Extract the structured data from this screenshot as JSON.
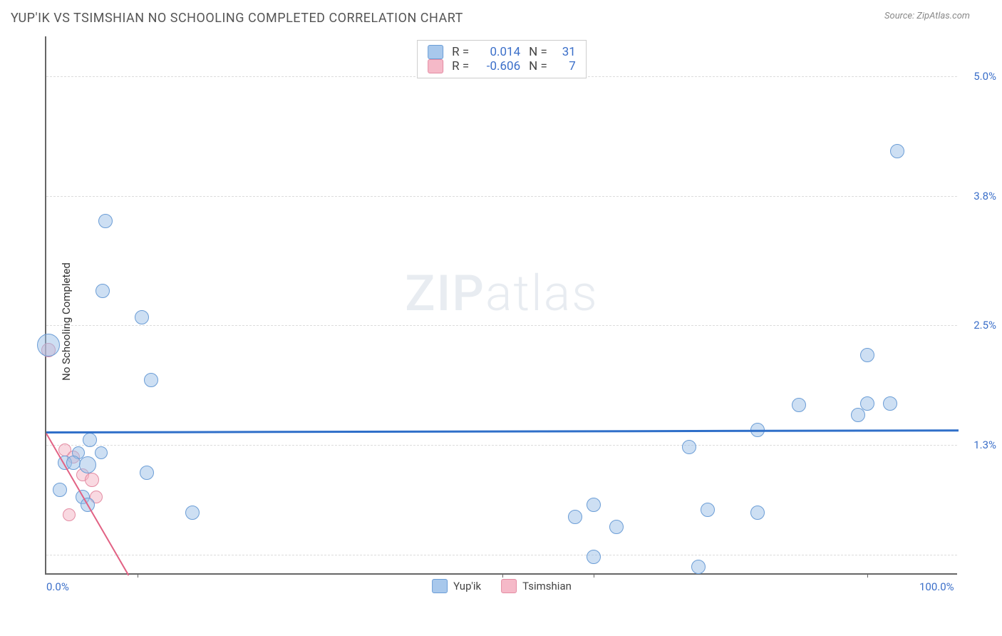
{
  "header": {
    "title": "YUP'IK VS TSIMSHIAN NO SCHOOLING COMPLETED CORRELATION CHART",
    "source": "Source: ZipAtlas.com"
  },
  "chart": {
    "type": "scatter",
    "ylabel": "No Schooling Completed",
    "xlim": [
      0,
      100
    ],
    "ylim": [
      0,
      5.4
    ],
    "xtick_labels": [
      "0.0%",
      "100.0%"
    ],
    "xtick_positions": [
      0,
      100
    ],
    "xtick_minor_positions": [
      10,
      50,
      60,
      90
    ],
    "ytick_labels": [
      "1.3%",
      "2.5%",
      "3.8%",
      "5.0%"
    ],
    "ytick_positions": [
      1.3,
      2.5,
      3.8,
      5.0
    ],
    "grid_positions": [
      0.2,
      1.3,
      2.5,
      3.8,
      5.0
    ],
    "background_color": "#ffffff",
    "grid_color": "#dcdcdc",
    "axis_color": "#666666",
    "watermark": {
      "zip": "ZIP",
      "atlas": "atlas"
    }
  },
  "series": {
    "yupik": {
      "label": "Yup'ik",
      "color_fill": "rgba(155,192,232,0.5)",
      "color_stroke": "#6b9dd6",
      "R": "0.014",
      "N": "31",
      "trend": {
        "x1": 0,
        "y1": 1.44,
        "x2": 100,
        "y2": 1.46,
        "width": 3,
        "color": "#2f6fc9"
      },
      "points": [
        {
          "x": 0.2,
          "y": 2.3,
          "r": 16
        },
        {
          "x": 6.5,
          "y": 3.55,
          "r": 10
        },
        {
          "x": 6.2,
          "y": 2.85,
          "r": 10
        },
        {
          "x": 10.5,
          "y": 2.58,
          "r": 10
        },
        {
          "x": 11.5,
          "y": 1.95,
          "r": 10
        },
        {
          "x": 4.8,
          "y": 1.35,
          "r": 10
        },
        {
          "x": 3.5,
          "y": 1.22,
          "r": 9
        },
        {
          "x": 6.0,
          "y": 1.22,
          "r": 9
        },
        {
          "x": 2.0,
          "y": 1.12,
          "r": 10
        },
        {
          "x": 3.0,
          "y": 1.12,
          "r": 10
        },
        {
          "x": 4.5,
          "y": 1.1,
          "r": 12
        },
        {
          "x": 1.5,
          "y": 0.85,
          "r": 10
        },
        {
          "x": 4.0,
          "y": 0.78,
          "r": 10
        },
        {
          "x": 11.0,
          "y": 1.02,
          "r": 10
        },
        {
          "x": 16.0,
          "y": 0.62,
          "r": 10
        },
        {
          "x": 4.5,
          "y": 0.7,
          "r": 10
        },
        {
          "x": 58.0,
          "y": 0.58,
          "r": 10
        },
        {
          "x": 60.0,
          "y": 0.7,
          "r": 10
        },
        {
          "x": 62.5,
          "y": 0.48,
          "r": 10
        },
        {
          "x": 60.0,
          "y": 0.18,
          "r": 10
        },
        {
          "x": 70.5,
          "y": 1.28,
          "r": 10
        },
        {
          "x": 71.5,
          "y": 0.08,
          "r": 10
        },
        {
          "x": 72.5,
          "y": 0.65,
          "r": 10
        },
        {
          "x": 78.0,
          "y": 0.62,
          "r": 10
        },
        {
          "x": 78.0,
          "y": 1.45,
          "r": 10
        },
        {
          "x": 82.5,
          "y": 1.7,
          "r": 10
        },
        {
          "x": 89.0,
          "y": 1.6,
          "r": 10
        },
        {
          "x": 90.0,
          "y": 1.72,
          "r": 10
        },
        {
          "x": 90.0,
          "y": 2.2,
          "r": 10
        },
        {
          "x": 92.5,
          "y": 1.72,
          "r": 10
        },
        {
          "x": 93.3,
          "y": 4.25,
          "r": 10
        }
      ]
    },
    "tsimshian": {
      "label": "Tsimshian",
      "color_fill": "rgba(244,180,195,0.5)",
      "color_stroke": "#e48ca3",
      "R": "-0.606",
      "N": "7",
      "trend": {
        "x1": 0,
        "y1": 1.42,
        "x2": 9,
        "y2": 0.0,
        "width": 2.5,
        "color": "#e26284"
      },
      "points": [
        {
          "x": 0.2,
          "y": 2.25,
          "r": 10
        },
        {
          "x": 2.0,
          "y": 1.25,
          "r": 9
        },
        {
          "x": 3.0,
          "y": 1.18,
          "r": 9
        },
        {
          "x": 4.0,
          "y": 1.0,
          "r": 9
        },
        {
          "x": 5.0,
          "y": 0.95,
          "r": 10
        },
        {
          "x": 5.5,
          "y": 0.78,
          "r": 9
        },
        {
          "x": 2.5,
          "y": 0.6,
          "r": 9
        }
      ]
    }
  },
  "legend": {
    "bottom_items": [
      "Yup'ik",
      "Tsimshian"
    ]
  }
}
